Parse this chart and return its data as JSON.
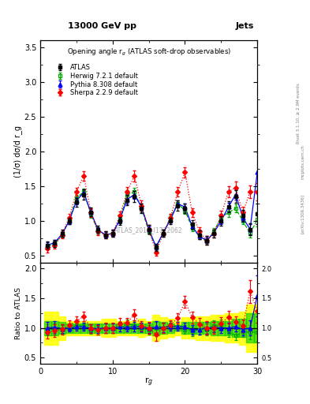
{
  "title_top": "13000 GeV pp",
  "title_right": "Jets",
  "plot_title": "Opening angle r$_g$ (ATLAS soft-drop observables)",
  "ylabel_main": "(1/σ) dσ/d r_g",
  "ylabel_ratio": "Ratio to ATLAS",
  "xlabel": "r$_g$",
  "watermark": "ATLAS_2019_I1772062",
  "rivet_text": "Rivet 3.1.10, ≥ 2.9M events",
  "arxiv_text": "[arXiv:1306.3436]",
  "mcplots_text": "mcplots.cern.ch",
  "xlim": [
    0,
    30
  ],
  "ylim_main": [
    0.4,
    3.6
  ],
  "ylim_ratio": [
    0.4,
    2.1
  ],
  "x": [
    1,
    2,
    3,
    4,
    5,
    6,
    7,
    8,
    9,
    10,
    11,
    12,
    13,
    14,
    15,
    16,
    17,
    18,
    19,
    20,
    21,
    22,
    23,
    24,
    25,
    26,
    27,
    28,
    29,
    30
  ],
  "atlas_y": [
    0.65,
    0.68,
    0.82,
    1.0,
    1.27,
    1.38,
    1.13,
    0.88,
    0.8,
    0.82,
    1.0,
    1.3,
    1.35,
    1.18,
    0.88,
    0.62,
    0.82,
    1.0,
    1.22,
    1.18,
    0.95,
    0.8,
    0.72,
    0.82,
    1.0,
    1.2,
    1.35,
    1.08,
    0.88,
    1.1
  ],
  "atlas_yerr": [
    0.05,
    0.05,
    0.05,
    0.05,
    0.06,
    0.07,
    0.06,
    0.05,
    0.05,
    0.05,
    0.06,
    0.07,
    0.08,
    0.07,
    0.06,
    0.05,
    0.05,
    0.05,
    0.07,
    0.07,
    0.06,
    0.06,
    0.06,
    0.06,
    0.07,
    0.08,
    0.09,
    0.08,
    0.09,
    0.15
  ],
  "herwig_y": [
    0.63,
    0.67,
    0.8,
    1.01,
    1.33,
    1.42,
    1.1,
    0.85,
    0.8,
    0.82,
    1.02,
    1.38,
    1.42,
    1.18,
    0.85,
    0.62,
    0.82,
    1.05,
    1.25,
    1.15,
    0.9,
    0.78,
    0.7,
    0.85,
    1.05,
    1.12,
    1.18,
    1.0,
    0.82,
    1.02
  ],
  "herwig_yerr": [
    0.04,
    0.04,
    0.04,
    0.04,
    0.05,
    0.05,
    0.05,
    0.04,
    0.04,
    0.04,
    0.05,
    0.06,
    0.06,
    0.05,
    0.04,
    0.04,
    0.04,
    0.04,
    0.05,
    0.05,
    0.05,
    0.04,
    0.04,
    0.05,
    0.05,
    0.06,
    0.06,
    0.05,
    0.06,
    0.1
  ],
  "pythia_y": [
    0.65,
    0.69,
    0.81,
    1.0,
    1.29,
    1.41,
    1.12,
    0.87,
    0.8,
    0.82,
    1.02,
    1.31,
    1.38,
    1.2,
    0.88,
    0.63,
    0.83,
    1.02,
    1.25,
    1.2,
    0.92,
    0.78,
    0.72,
    0.83,
    1.0,
    1.2,
    1.38,
    1.05,
    0.88,
    1.7
  ],
  "pythia_yerr": [
    0.04,
    0.04,
    0.04,
    0.04,
    0.05,
    0.05,
    0.05,
    0.04,
    0.04,
    0.04,
    0.05,
    0.06,
    0.06,
    0.05,
    0.04,
    0.04,
    0.04,
    0.04,
    0.05,
    0.05,
    0.05,
    0.04,
    0.04,
    0.04,
    0.05,
    0.06,
    0.07,
    0.06,
    0.07,
    0.3
  ],
  "sherpa_y": [
    0.6,
    0.65,
    0.8,
    1.05,
    1.42,
    1.65,
    1.12,
    0.85,
    0.8,
    0.82,
    1.08,
    1.42,
    1.65,
    1.22,
    0.88,
    0.55,
    0.82,
    1.05,
    1.42,
    1.7,
    1.12,
    0.85,
    0.72,
    0.82,
    1.08,
    1.42,
    1.48,
    1.12,
    1.42,
    1.42
  ],
  "sherpa_yerr": [
    0.05,
    0.05,
    0.05,
    0.05,
    0.06,
    0.07,
    0.06,
    0.05,
    0.05,
    0.05,
    0.06,
    0.07,
    0.08,
    0.07,
    0.06,
    0.05,
    0.05,
    0.05,
    0.07,
    0.07,
    0.06,
    0.06,
    0.06,
    0.06,
    0.07,
    0.08,
    0.09,
    0.08,
    0.09,
    0.12
  ],
  "band_yellow_lo": [
    0.72,
    0.72,
    0.8,
    0.88,
    0.88,
    0.88,
    0.88,
    0.88,
    0.85,
    0.85,
    0.88,
    0.88,
    0.88,
    0.85,
    0.88,
    0.78,
    0.82,
    0.85,
    0.88,
    0.82,
    0.82,
    0.8,
    0.8,
    0.78,
    0.78,
    0.75,
    0.75,
    0.72,
    0.6,
    0.6
  ],
  "band_yellow_hi": [
    1.28,
    1.28,
    1.2,
    1.12,
    1.12,
    1.12,
    1.12,
    1.12,
    1.15,
    1.15,
    1.12,
    1.12,
    1.12,
    1.15,
    1.12,
    1.22,
    1.18,
    1.15,
    1.12,
    1.18,
    1.18,
    1.2,
    1.2,
    1.22,
    1.22,
    1.25,
    1.25,
    1.28,
    1.4,
    1.4
  ],
  "band_green_lo": [
    0.88,
    0.88,
    0.9,
    0.92,
    0.92,
    0.92,
    0.92,
    0.92,
    0.92,
    0.92,
    0.92,
    0.92,
    0.92,
    0.92,
    0.92,
    0.88,
    0.9,
    0.92,
    0.95,
    0.9,
    0.9,
    0.9,
    0.9,
    0.88,
    0.88,
    0.88,
    0.85,
    0.85,
    0.75,
    0.75
  ],
  "band_green_hi": [
    1.12,
    1.12,
    1.1,
    1.08,
    1.08,
    1.08,
    1.08,
    1.08,
    1.08,
    1.08,
    1.08,
    1.08,
    1.08,
    1.08,
    1.08,
    1.12,
    1.1,
    1.08,
    1.05,
    1.1,
    1.1,
    1.1,
    1.1,
    1.12,
    1.12,
    1.12,
    1.15,
    1.15,
    1.25,
    1.25
  ],
  "atlas_color": "#000000",
  "herwig_color": "#00aa00",
  "pythia_color": "#0000ff",
  "sherpa_color": "#ff0000",
  "band_yellow_color": "#ffff00",
  "band_green_color": "#00cc00"
}
